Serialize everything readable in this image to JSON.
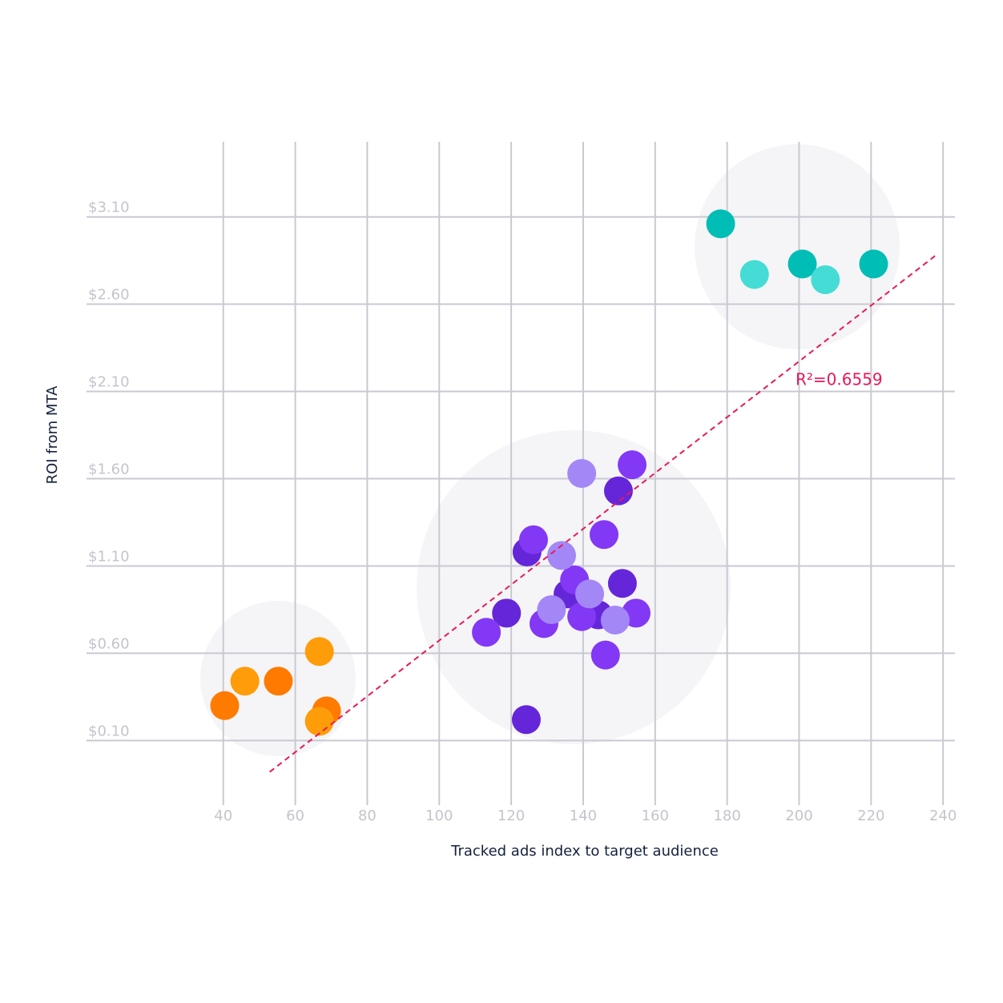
{
  "chart_data": {
    "type": "scatter",
    "x_label": "Tracked ads index to target audience",
    "y_label": "ROI from MTA",
    "xlim": [
      2,
      243.3
    ],
    "ylim": [
      -0.27,
      3.53
    ],
    "xticks": [
      40,
      60,
      80,
      100,
      120,
      140,
      160,
      180,
      200,
      220,
      240
    ],
    "yticks": [
      {
        "value": 0.1,
        "label": "$0.10"
      },
      {
        "value": 0.6,
        "label": "$0.60"
      },
      {
        "value": 1.1,
        "label": "$1.10"
      },
      {
        "value": 1.6,
        "label": "$1.60"
      },
      {
        "value": 2.1,
        "label": "$2.10"
      },
      {
        "value": 2.6,
        "label": "$2.60"
      },
      {
        "value": 3.1,
        "label": "$3.10"
      }
    ],
    "grid": true,
    "series": [
      {
        "color": "#00bdb6",
        "x": [
          178.2,
          200.9,
          220.7
        ],
        "values": [
          3.06,
          2.83,
          2.83
        ]
      },
      {
        "color": "#45dcd5",
        "x": [
          187.6,
          207.3
        ],
        "values": [
          2.77,
          2.74
        ]
      },
      {
        "color": "#ff7a00",
        "x": [
          40.4,
          55.3,
          68.7
        ],
        "values": [
          0.3,
          0.44,
          0.27
        ]
      },
      {
        "color": "#ff9c0a",
        "x": [
          66.7,
          46.0,
          66.7
        ],
        "values": [
          0.61,
          0.44,
          0.21
        ]
      },
      {
        "color": "#6526d9",
        "x": [
          149.8,
          124.4,
          150.9,
          135.8,
          118.7,
          144.2,
          124.2
        ],
        "values": [
          1.53,
          1.18,
          1.0,
          0.94,
          0.83,
          0.82,
          0.22
        ]
      },
      {
        "color": "#8338f5",
        "x": [
          153.6,
          145.8,
          126.2,
          137.6,
          154.7,
          139.6,
          129.1,
          113.1,
          146.2
        ],
        "values": [
          1.68,
          1.28,
          1.25,
          1.02,
          0.83,
          0.81,
          0.77,
          0.72,
          0.59
        ]
      },
      {
        "color": "#a487f7",
        "x": [
          139.6,
          134.0,
          141.8,
          131.2,
          148.9
        ],
        "values": [
          1.63,
          1.16,
          0.94,
          0.85,
          0.79
        ]
      }
    ],
    "trendline": {
      "color": "#e8195a",
      "x": [
        52.9,
        238
      ],
      "values": [
        -0.08,
        2.88
      ],
      "label": "R²=0.6559"
    }
  }
}
